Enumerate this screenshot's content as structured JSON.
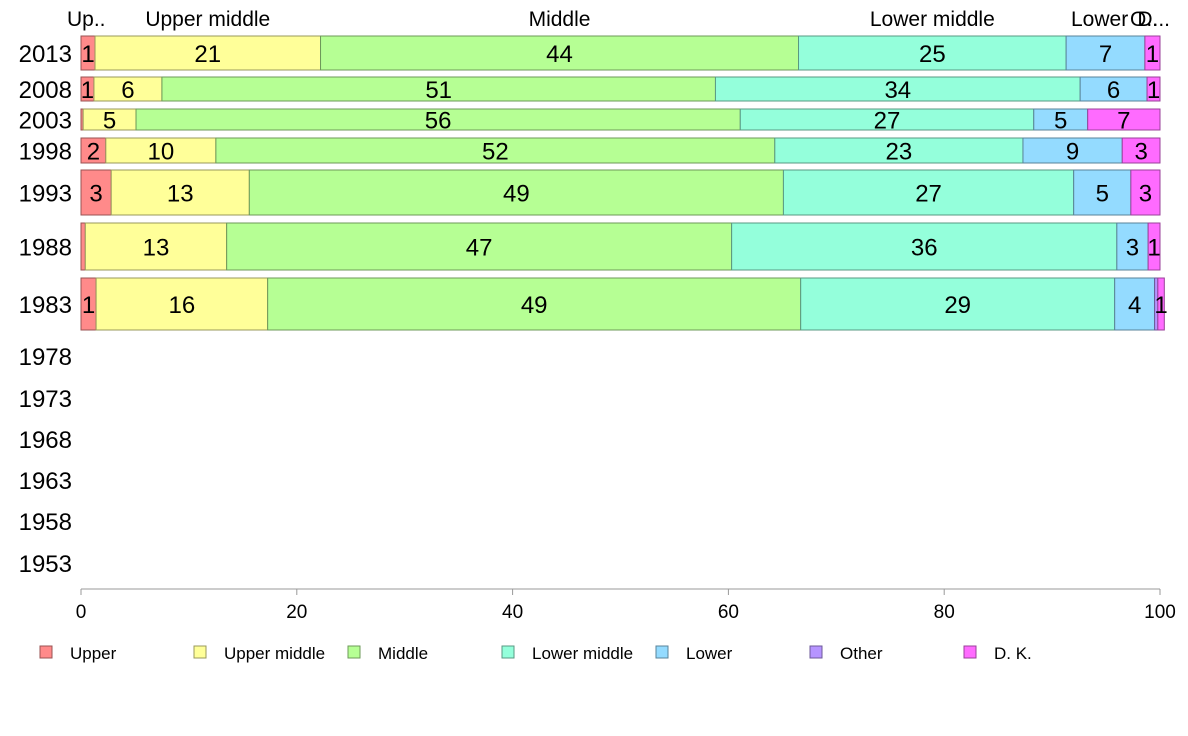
{
  "chart_data": {
    "type": "bar",
    "orientation": "horizontal",
    "stacked": true,
    "categories": [
      "2013",
      "2008",
      "2003",
      "1998",
      "1993",
      "1988",
      "1983",
      "1978",
      "1973",
      "1968",
      "1963",
      "1958",
      "1953"
    ],
    "xlim": [
      0,
      100
    ],
    "xticks": [
      0,
      20,
      40,
      60,
      80,
      100
    ],
    "legend_position": "bottom",
    "grid": false,
    "series": [
      {
        "name": "Upper",
        "color": "#ff8a8a",
        "values": [
          1.3,
          1.2,
          0.2,
          2.3,
          2.8,
          0.4,
          1.4,
          null,
          null,
          null,
          null,
          null,
          null
        ],
        "labels": [
          "1",
          "1",
          "",
          "2",
          "3",
          "",
          "1",
          "",
          "",
          "",
          "",
          "",
          ""
        ]
      },
      {
        "name": "Upper middle",
        "color": "#ffff99",
        "values": [
          20.9,
          6.3,
          4.9,
          10.2,
          12.8,
          13.1,
          15.9,
          null,
          null,
          null,
          null,
          null,
          null
        ],
        "labels": [
          "21",
          "6",
          "5",
          "10",
          "13",
          "13",
          "16",
          "",
          "",
          "",
          "",
          "",
          ""
        ]
      },
      {
        "name": "Middle",
        "color": "#b6ff94",
        "values": [
          44.3,
          51.3,
          56.0,
          51.8,
          49.5,
          46.8,
          49.4,
          null,
          null,
          null,
          null,
          null,
          null
        ],
        "labels": [
          "44",
          "51",
          "56",
          "52",
          "49",
          "47",
          "49",
          "",
          "",
          "",
          "",
          "",
          ""
        ]
      },
      {
        "name": "Lower middle",
        "color": "#94ffdb",
        "values": [
          24.8,
          33.8,
          27.2,
          23.0,
          26.9,
          35.7,
          29.1,
          null,
          null,
          null,
          null,
          null,
          null
        ],
        "labels": [
          "25",
          "34",
          "27",
          "23",
          "27",
          "36",
          "29",
          "",
          "",
          "",
          "",
          "",
          ""
        ]
      },
      {
        "name": "Lower",
        "color": "#94dbff",
        "values": [
          7.3,
          6.2,
          5.0,
          9.2,
          5.3,
          2.9,
          3.7,
          null,
          null,
          null,
          null,
          null,
          null
        ],
        "labels": [
          "7",
          "6",
          "5",
          "9",
          "5",
          "3",
          "4",
          "",
          "",
          "",
          "",
          "",
          ""
        ]
      },
      {
        "name": "Other",
        "color": "#b694ff",
        "values": [
          0,
          0,
          0,
          0,
          0,
          0,
          0.3,
          null,
          null,
          null,
          null,
          null,
          null
        ],
        "labels": [
          "",
          "",
          "",
          "",
          "",
          "",
          "",
          "",
          "",
          "",
          "",
          "",
          ""
        ]
      },
      {
        "name": "D. K.",
        "color": "#ff6bff",
        "values": [
          1.4,
          1.2,
          6.7,
          3.5,
          2.7,
          1.1,
          0.6,
          null,
          null,
          null,
          null,
          null,
          null
        ],
        "labels": [
          "1",
          "1",
          "7",
          "3",
          "3",
          "1",
          "1",
          "",
          "",
          "",
          "",
          "",
          ""
        ]
      }
    ],
    "top_labels": [
      "Up..",
      "Upper middle",
      "Middle",
      "Lower middle",
      "Lower",
      "O..",
      "D...",
      "",
      "",
      "",
      "",
      "",
      ""
    ]
  }
}
